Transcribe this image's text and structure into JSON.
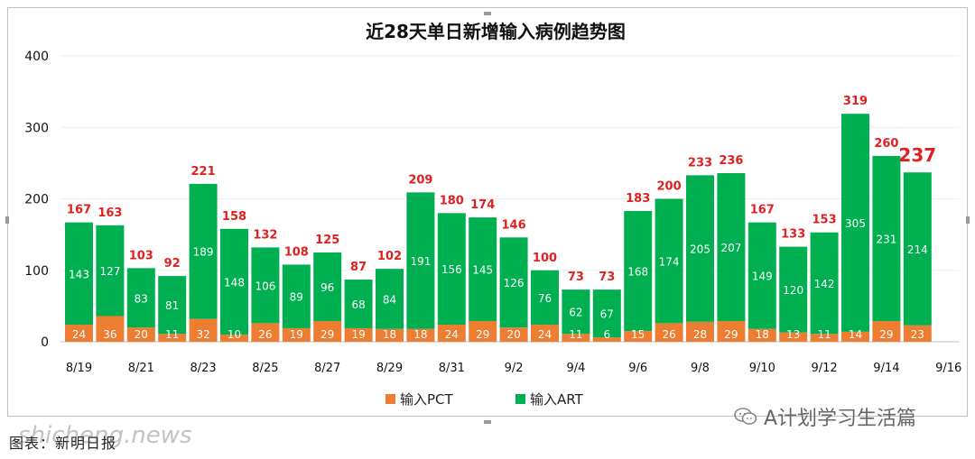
{
  "chart_data": {
    "type": "bar",
    "stacked": true,
    "title": "近28天单日新增输入病例趋势图",
    "categories": [
      "8/19",
      "8/20",
      "8/21",
      "8/22",
      "8/23",
      "8/24",
      "8/25",
      "8/26",
      "8/27",
      "8/28",
      "8/29",
      "8/30",
      "8/31",
      "9/1",
      "9/2",
      "9/3",
      "9/4",
      "9/5",
      "9/6",
      "9/7",
      "9/8",
      "9/9",
      "9/10",
      "9/11",
      "9/12",
      "9/13",
      "9/14",
      "9/15"
    ],
    "x_tick_labels": [
      "8/19",
      "8/21",
      "8/23",
      "8/25",
      "8/27",
      "8/29",
      "8/31",
      "9/2",
      "9/4",
      "9/6",
      "9/8",
      "9/10",
      "9/12",
      "9/14",
      "9/16"
    ],
    "series": [
      {
        "name": "输入PCT",
        "color": "#ed7d31",
        "values": [
          24,
          36,
          20,
          11,
          32,
          10,
          26,
          19,
          29,
          19,
          18,
          18,
          24,
          29,
          20,
          24,
          11,
          6,
          15,
          26,
          28,
          29,
          18,
          13,
          11,
          14,
          29,
          23
        ]
      },
      {
        "name": "输入ART",
        "color": "#00b050",
        "values": [
          143,
          127,
          83,
          81,
          189,
          148,
          106,
          89,
          96,
          68,
          84,
          191,
          156,
          145,
          126,
          76,
          62,
          67,
          168,
          174,
          205,
          207,
          149,
          120,
          142,
          305,
          231,
          214
        ]
      }
    ],
    "totals": [
      167,
      163,
      103,
      92,
      221,
      158,
      132,
      108,
      125,
      87,
      102,
      209,
      180,
      174,
      146,
      100,
      73,
      73,
      183,
      200,
      233,
      236,
      167,
      133,
      153,
      319,
      260,
      237
    ],
    "ylim": [
      0,
      400
    ],
    "y_ticks": [
      0,
      100,
      200,
      300,
      400
    ],
    "grid": true,
    "legend_position": "bottom",
    "highlight_last_total": true,
    "total_label_color": "#e02020"
  },
  "footer": {
    "source_text": "图表：新明日报",
    "watermark": "shicheng.news",
    "brand": "A计划学习生活篇"
  }
}
